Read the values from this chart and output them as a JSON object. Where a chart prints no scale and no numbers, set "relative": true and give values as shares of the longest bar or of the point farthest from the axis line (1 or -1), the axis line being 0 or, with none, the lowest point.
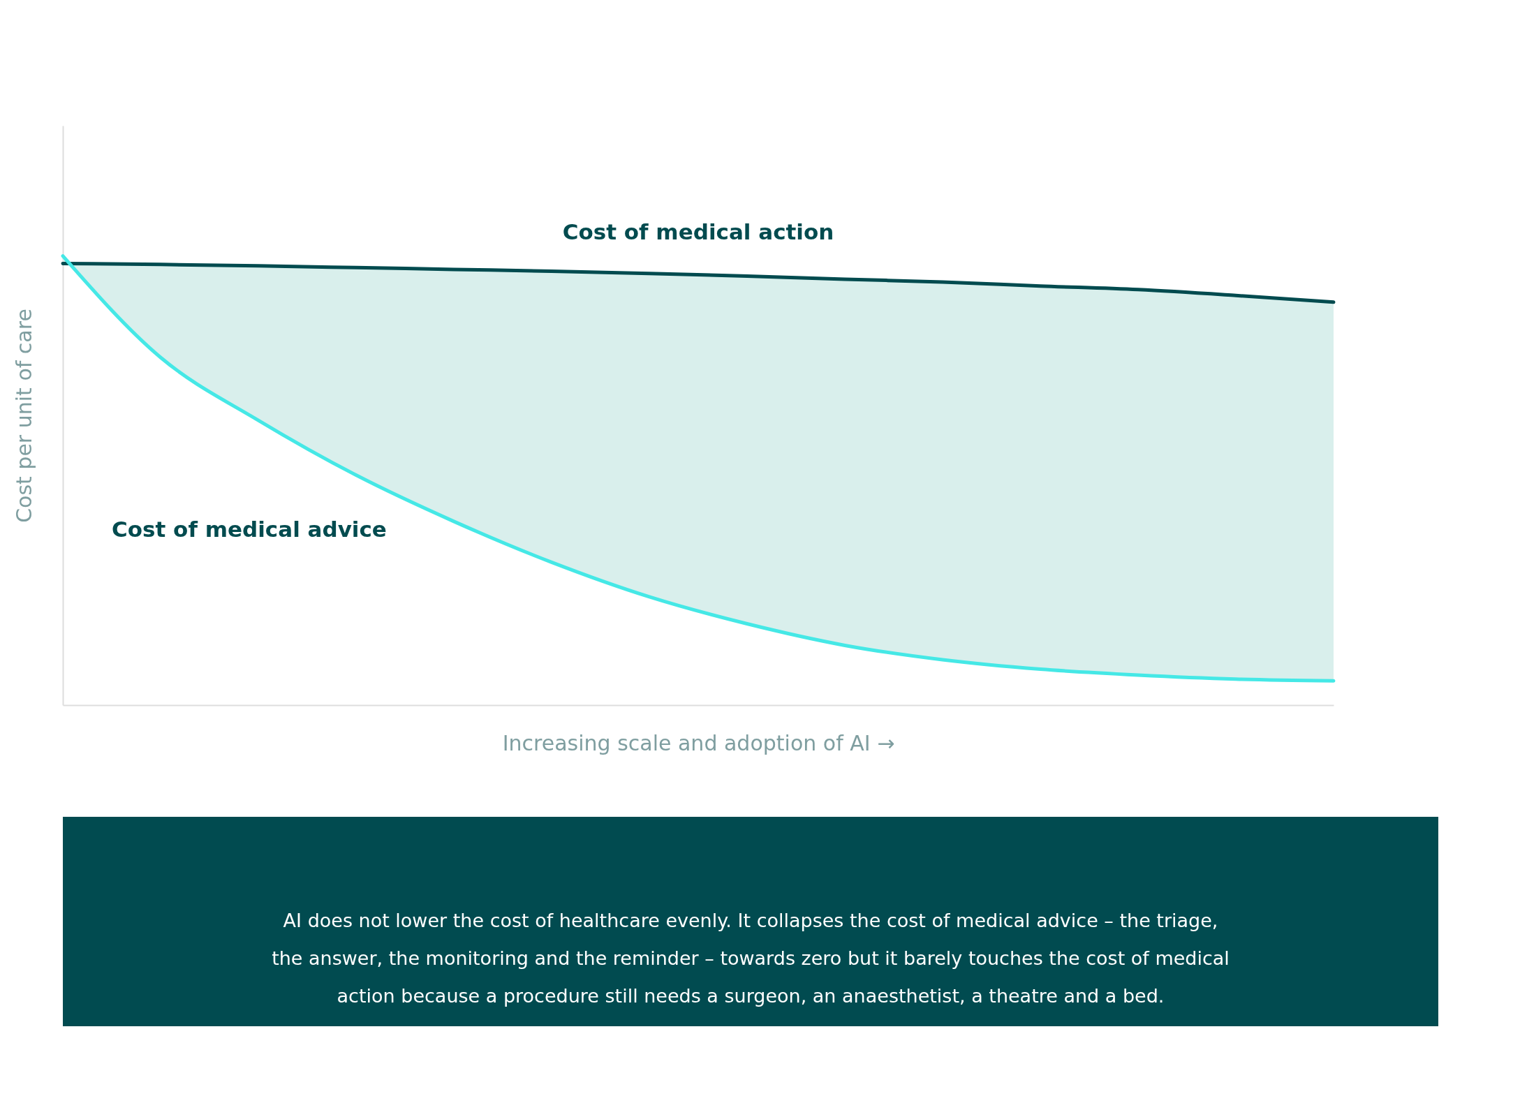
{
  "chart_data": {
    "type": "line",
    "relative": true,
    "xlabel": "Increasing scale and adoption of AI →",
    "ylabel": "Cost per unit of care",
    "categories": [
      null,
      null,
      null,
      null,
      null,
      null,
      null,
      null,
      null,
      null,
      null,
      null,
      null,
      null
    ],
    "series": [
      {
        "name": "Cost of medical action",
        "color": "#024b4f",
        "values": [
          0.983,
          0.981,
          0.978,
          0.974,
          0.97,
          0.966,
          0.961,
          0.955,
          0.948,
          0.942,
          0.933,
          0.925,
          0.912,
          0.897
        ],
        "lower": [
          1.0,
          0.774,
          0.634,
          0.512,
          0.409,
          0.318,
          0.241,
          0.181,
          0.133,
          0.101,
          0.08,
          0.067,
          0.058,
          0.054
        ],
        "upper": [
          0.983,
          0.981,
          0.978,
          0.974,
          0.97,
          0.966,
          0.961,
          0.955,
          0.948,
          0.942,
          0.933,
          0.925,
          0.912,
          0.897
        ]
      },
      {
        "name": "Cost of medical advice",
        "color": "#45e8e6",
        "values": [
          1.0,
          0.774,
          0.634,
          0.512,
          0.409,
          0.318,
          0.241,
          0.181,
          0.133,
          0.101,
          0.08,
          0.067,
          0.058,
          0.054
        ]
      }
    ],
    "legend": false,
    "grid": false,
    "tick_labels": false,
    "line_style": "solid",
    "marker": "none",
    "annotations": [
      "AI does not lower the cost of healthcare evenly. It collapses the cost of medical advice – the triage, the answer, the monitoring and the reminder – towards zero but it barely touches the cost of medical action because a procedure still needs a surgeon, an anaesthetist, a theatre and a bed."
    ]
  }
}
